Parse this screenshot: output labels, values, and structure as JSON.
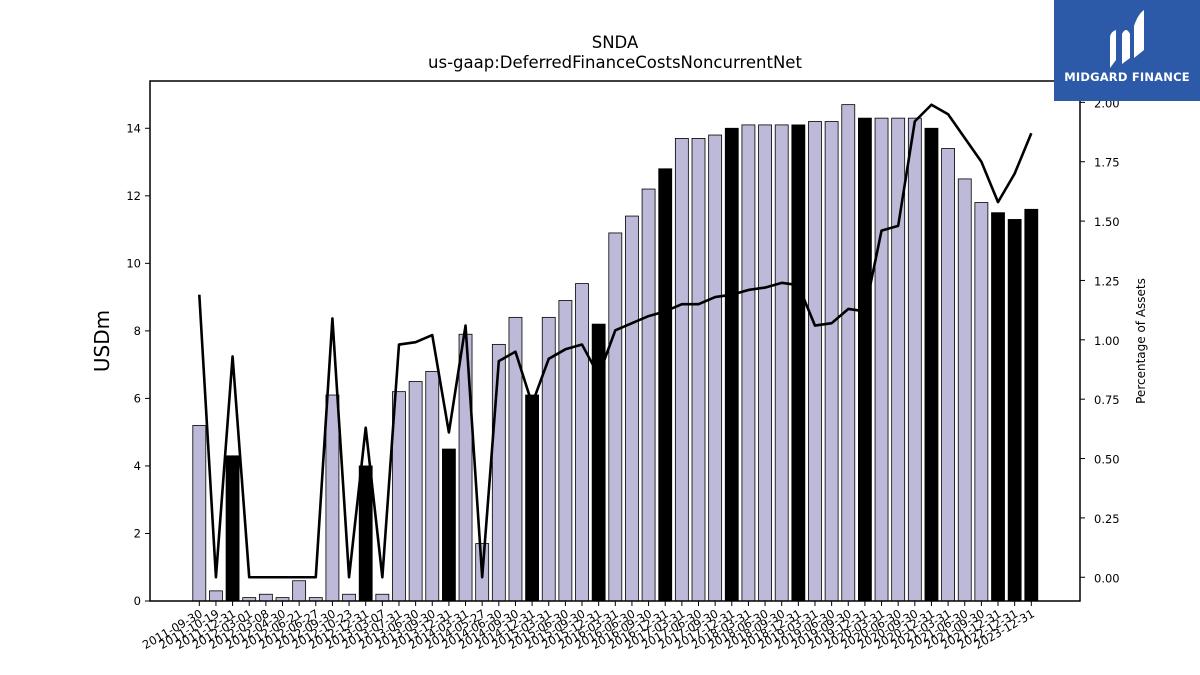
{
  "chart_data": {
    "type": "bar",
    "title": "SNDA",
    "subtitle": "us-gaap:DeferredFinanceCostsNoncurrentNet",
    "ylabel": "USDm",
    "y2label": "Percentage of Assets",
    "ylim": [
      0,
      15.4
    ],
    "y2lim": [
      -0.1,
      2.09
    ],
    "yticks": [
      "0",
      "2",
      "4",
      "6",
      "8",
      "10",
      "12",
      "14"
    ],
    "y2ticks": [
      "0.00",
      "0.25",
      "0.50",
      "0.75",
      "1.00",
      "1.25",
      "1.50",
      "1.75",
      "2.00"
    ],
    "colors": {
      "bar": "#bcbad8",
      "bar_highlight": "#000000",
      "line": "#000000"
    },
    "categories": [
      "2011-09-30",
      "2011-10-19",
      "2011-12-31",
      "2012-03-01",
      "2012-03-08",
      "2012-04-30",
      "2012-06-21",
      "2012-06-27",
      "2012-09-30",
      "2012-10-23",
      "2012-12-31",
      "2013-03-07",
      "2013-07-31",
      "2013-06-30",
      "2013-09-30",
      "2013-12-31",
      "2014-03-31",
      "2014-05-27",
      "2014-06-30",
      "2014-09-30",
      "2014-12-31",
      "2015-03-31",
      "2015-06-30",
      "2015-09-30",
      "2015-12-31",
      "2016-03-31",
      "2016-06-30",
      "2016-09-30",
      "2016-12-31",
      "2017-03-31",
      "2017-06-30",
      "2017-09-30",
      "2017-12-31",
      "2018-03-31",
      "2018-06-30",
      "2018-09-30",
      "2018-12-31",
      "2019-03-31",
      "2019-06-30",
      "2019-09-30",
      "2019-12-31",
      "2020-03-31",
      "2020-06-30",
      "2020-09-30",
      "2020-12-31",
      "2021-03-31",
      "2021-06-30",
      "2021-09-30",
      "2021-12-31",
      "2022-12-31",
      "2023-12-31"
    ],
    "series": [
      {
        "type": "bar",
        "values": [
          5.2,
          0.3,
          4.3,
          0.1,
          0.2,
          0.1,
          0.6,
          0.1,
          6.1,
          0.2,
          4.0,
          0.2,
          6.2,
          6.5,
          6.8,
          4.5,
          7.9,
          1.7,
          7.6,
          8.4,
          6.1,
          8.4,
          8.9,
          9.4,
          8.2,
          10.9,
          11.4,
          12.2,
          12.8,
          13.7,
          13.7,
          13.8,
          14.0,
          14.1,
          14.1,
          14.1,
          14.1,
          14.2,
          14.2,
          14.7,
          14.3,
          14.3,
          14.3,
          14.3,
          14.0,
          13.4,
          12.5,
          11.8,
          11.5,
          11.3,
          11.6
        ],
        "highlight": [
          false,
          false,
          true,
          false,
          false,
          false,
          false,
          false,
          false,
          false,
          true,
          false,
          false,
          false,
          false,
          true,
          false,
          false,
          false,
          false,
          true,
          false,
          false,
          false,
          true,
          false,
          false,
          false,
          true,
          false,
          false,
          false,
          true,
          false,
          false,
          false,
          true,
          false,
          false,
          false,
          true,
          false,
          false,
          false,
          true,
          false,
          false,
          false,
          true,
          true,
          true
        ]
      },
      {
        "type": "line",
        "axis": "right",
        "values": [
          1.19,
          0.0,
          0.93,
          0.0,
          0.0,
          0.0,
          0.0,
          0.0,
          1.09,
          0.0,
          0.63,
          0.0,
          0.98,
          0.99,
          1.02,
          0.61,
          1.06,
          0.0,
          0.91,
          0.95,
          0.73,
          0.92,
          0.96,
          0.98,
          0.85,
          1.04,
          1.07,
          1.1,
          1.12,
          1.15,
          1.15,
          1.18,
          1.19,
          1.21,
          1.22,
          1.24,
          1.23,
          1.06,
          1.07,
          1.13,
          1.12,
          1.46,
          1.48,
          1.92,
          1.99,
          1.95,
          1.85,
          1.75,
          1.58,
          1.7,
          1.87
        ]
      }
    ]
  },
  "logo": {
    "text": "MIDGARD FINANCE",
    "name": "midgard-logo-icon"
  }
}
